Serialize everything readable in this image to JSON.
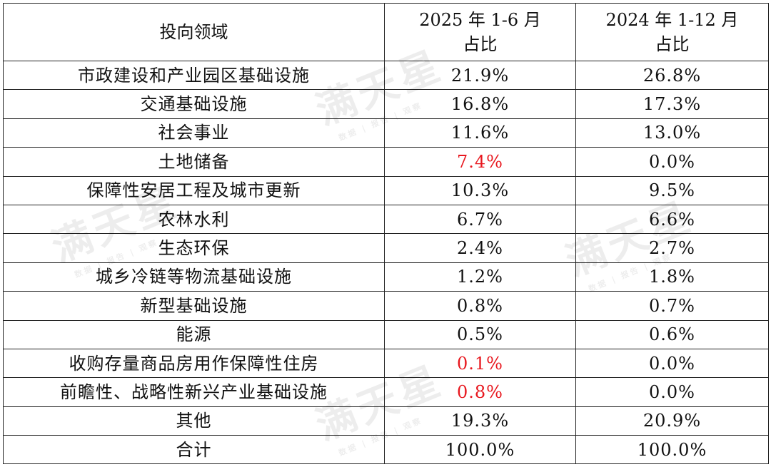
{
  "table": {
    "headers": {
      "col1": "投向领域",
      "col2_line1": "2025 年 1-6 月",
      "col2_line2": "占比",
      "col3_line1": "2024 年 1-12 月",
      "col3_line2": "占比"
    },
    "rows": [
      {
        "field": "市政建设和产业园区基础设施",
        "v2025": "21.9%",
        "v2024": "26.8%"
      },
      {
        "field": "交通基础设施",
        "v2025": "16.8%",
        "v2024": "17.3%"
      },
      {
        "field": "社会事业",
        "v2025": "11.6%",
        "v2024": "13.0%"
      },
      {
        "field": "土地储备",
        "v2025": "7.4%",
        "v2024": "0.0%"
      },
      {
        "field": "保障性安居工程及城市更新",
        "v2025": "10.3%",
        "v2024": "9.5%"
      },
      {
        "field": "农林水利",
        "v2025": "6.7%",
        "v2024": "6.6%"
      },
      {
        "field": "生态环保",
        "v2025": "2.4%",
        "v2024": "2.7%"
      },
      {
        "field": "城乡冷链等物流基础设施",
        "v2025": "1.2%",
        "v2024": "1.8%"
      },
      {
        "field": "新型基础设施",
        "v2025": "0.8%",
        "v2024": "0.7%"
      },
      {
        "field": "能源",
        "v2025": "0.5%",
        "v2024": "0.6%"
      },
      {
        "field": "收购存量商品房用作保障性住房",
        "v2025": "0.1%",
        "v2024": "0.0%"
      },
      {
        "field": "前瞻性、战略性新兴产业基础设施",
        "v2025": "0.8%",
        "v2024": "0.0%"
      },
      {
        "field": "其他",
        "v2025": "19.3%",
        "v2024": "20.9%"
      },
      {
        "field": "合计",
        "v2025": "100.0%",
        "v2024": "100.0%"
      }
    ],
    "highlight_color": "#e8181f"
  },
  "watermark": {
    "brand": "满天星",
    "tagline": "数据 | 报告 | 观察"
  }
}
